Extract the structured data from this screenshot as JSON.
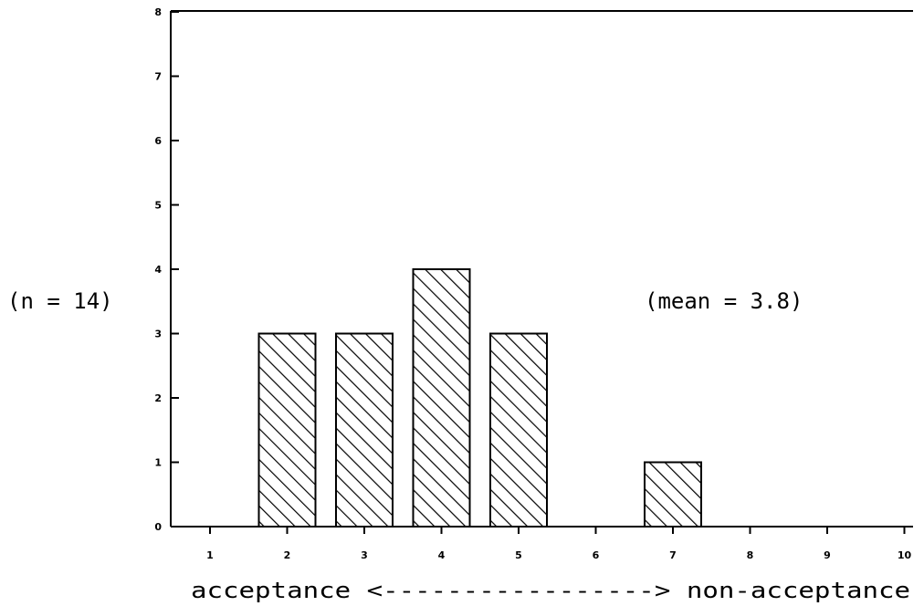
{
  "chart_data": {
    "type": "bar",
    "title": "",
    "categories": [
      "1",
      "2",
      "3",
      "4",
      "5",
      "6",
      "7",
      "8",
      "9",
      "10"
    ],
    "values": [
      0,
      3,
      3,
      4,
      3,
      0,
      1,
      0,
      0,
      0
    ],
    "xlabel": "acceptance <-----------------> non-acceptance",
    "ylabel": "",
    "ylim": [
      0,
      8
    ],
    "yticks": [
      "0",
      "1",
      "2",
      "3",
      "4",
      "5",
      "6",
      "7",
      "8"
    ],
    "annotations": {
      "n_label": "(n = 14)",
      "mean_label": "(mean = 3.8)"
    },
    "bar_fill": "hatched",
    "grid": false,
    "legend": "none"
  },
  "colors": {
    "ink": "#000000",
    "background": "#ffffff"
  }
}
